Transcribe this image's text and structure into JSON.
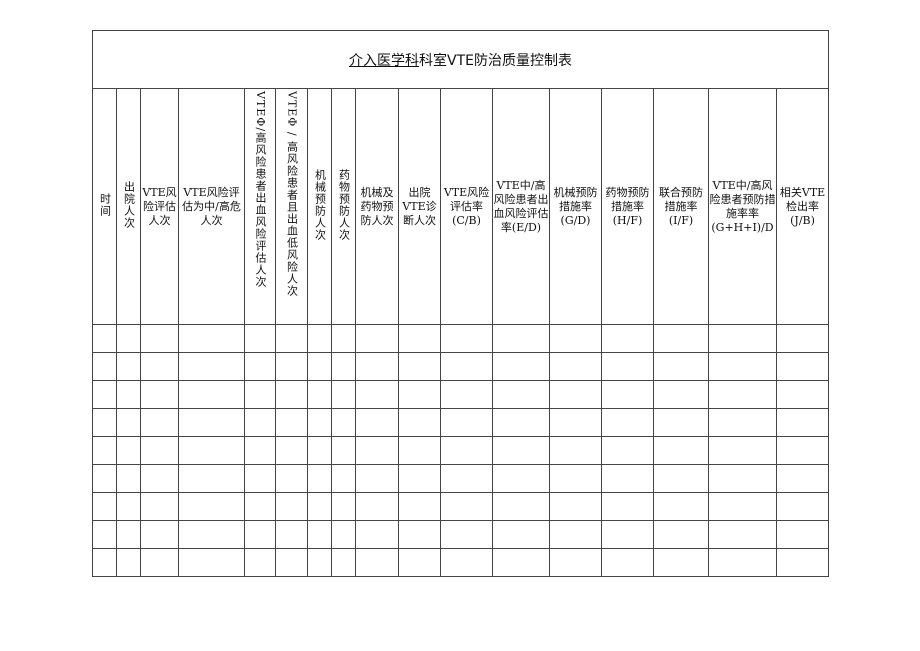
{
  "title": {
    "underlined": "介入医学科",
    "rest": "科室VTE防治质量控制表"
  },
  "columns": [
    {
      "label": "时间",
      "vertical": true
    },
    {
      "label": "出院人次",
      "vertical": true
    },
    {
      "label": "VTE风险评估人次",
      "vertical": false
    },
    {
      "label": "VTE风险评估为中/高危人次",
      "vertical": false
    },
    {
      "label": "VTEΦ/高风险患者出血风险评估人次",
      "vertical": true
    },
    {
      "label": "VTEΦ / 高风险患者且出血低风险人次",
      "vertical": true
    },
    {
      "label": "机械预防人次",
      "vertical": true
    },
    {
      "label": "药物预防人次",
      "vertical": true
    },
    {
      "label": "机械及药物预防人次",
      "vertical": false
    },
    {
      "label": "出院VTE诊断人次",
      "vertical": false
    },
    {
      "label": "VTE风险评估率(C/B)",
      "vertical": false
    },
    {
      "label": "VTE中/高风险患者出血风险评估率(E/D)",
      "vertical": false
    },
    {
      "label": "机械预防措施率(G/D)",
      "vertical": false
    },
    {
      "label": "药物预防措施率(H/F)",
      "vertical": false
    },
    {
      "label": "联合预防措施率(I/F)",
      "vertical": false
    },
    {
      "label": "VTE中/高风险患者预防措施率率(G+H+I)/D",
      "vertical": false
    },
    {
      "label": "相关VTE检出率(J/B)",
      "vertical": false
    }
  ],
  "empty_rows": 9
}
